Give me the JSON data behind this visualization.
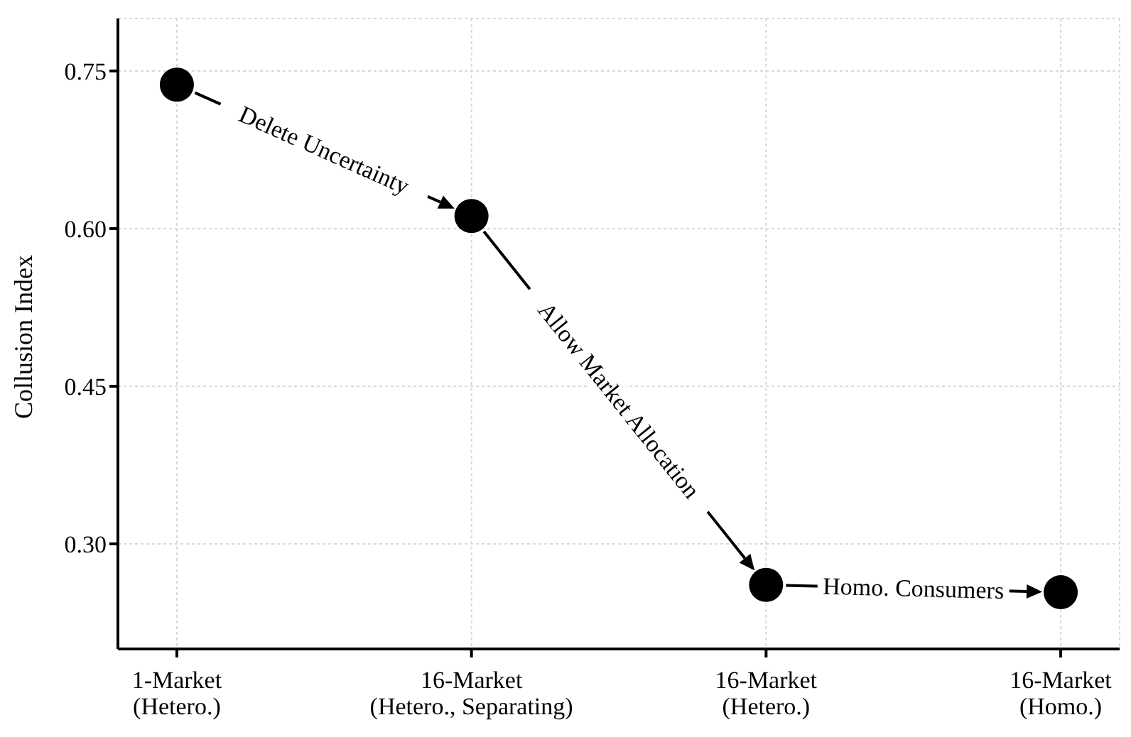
{
  "chart_data": {
    "type": "scatter",
    "ylabel": "Collusion Index",
    "categories": [
      "1-Market (Hetero.)",
      "16-Market (Hetero., Separating)",
      "16-Market (Hetero.)",
      "16-Market (Homo.)"
    ],
    "series": [
      {
        "color": "#000000",
        "values": [
          0.737,
          0.612,
          0.261,
          0.254
        ]
      }
    ],
    "ylim": [
      0.2,
      0.8
    ],
    "yticks": [
      {
        "value": 0.3,
        "label": "0.30"
      },
      {
        "value": 0.45,
        "label": "0.45"
      },
      {
        "value": 0.6,
        "label": "0.60"
      },
      {
        "value": 0.75,
        "label": "0.75"
      }
    ],
    "grid": true,
    "marker": "circle",
    "annotations": [
      {
        "text": "Delete Uncertainty",
        "x": "16-Market (Hetero., Separating)",
        "y": 0.612
      },
      "Allow Market Allocation",
      {
        "text": "Homo. Consumers",
        "x": "16-Market (Homo.)",
        "y": 0.254
      }
    ]
  }
}
